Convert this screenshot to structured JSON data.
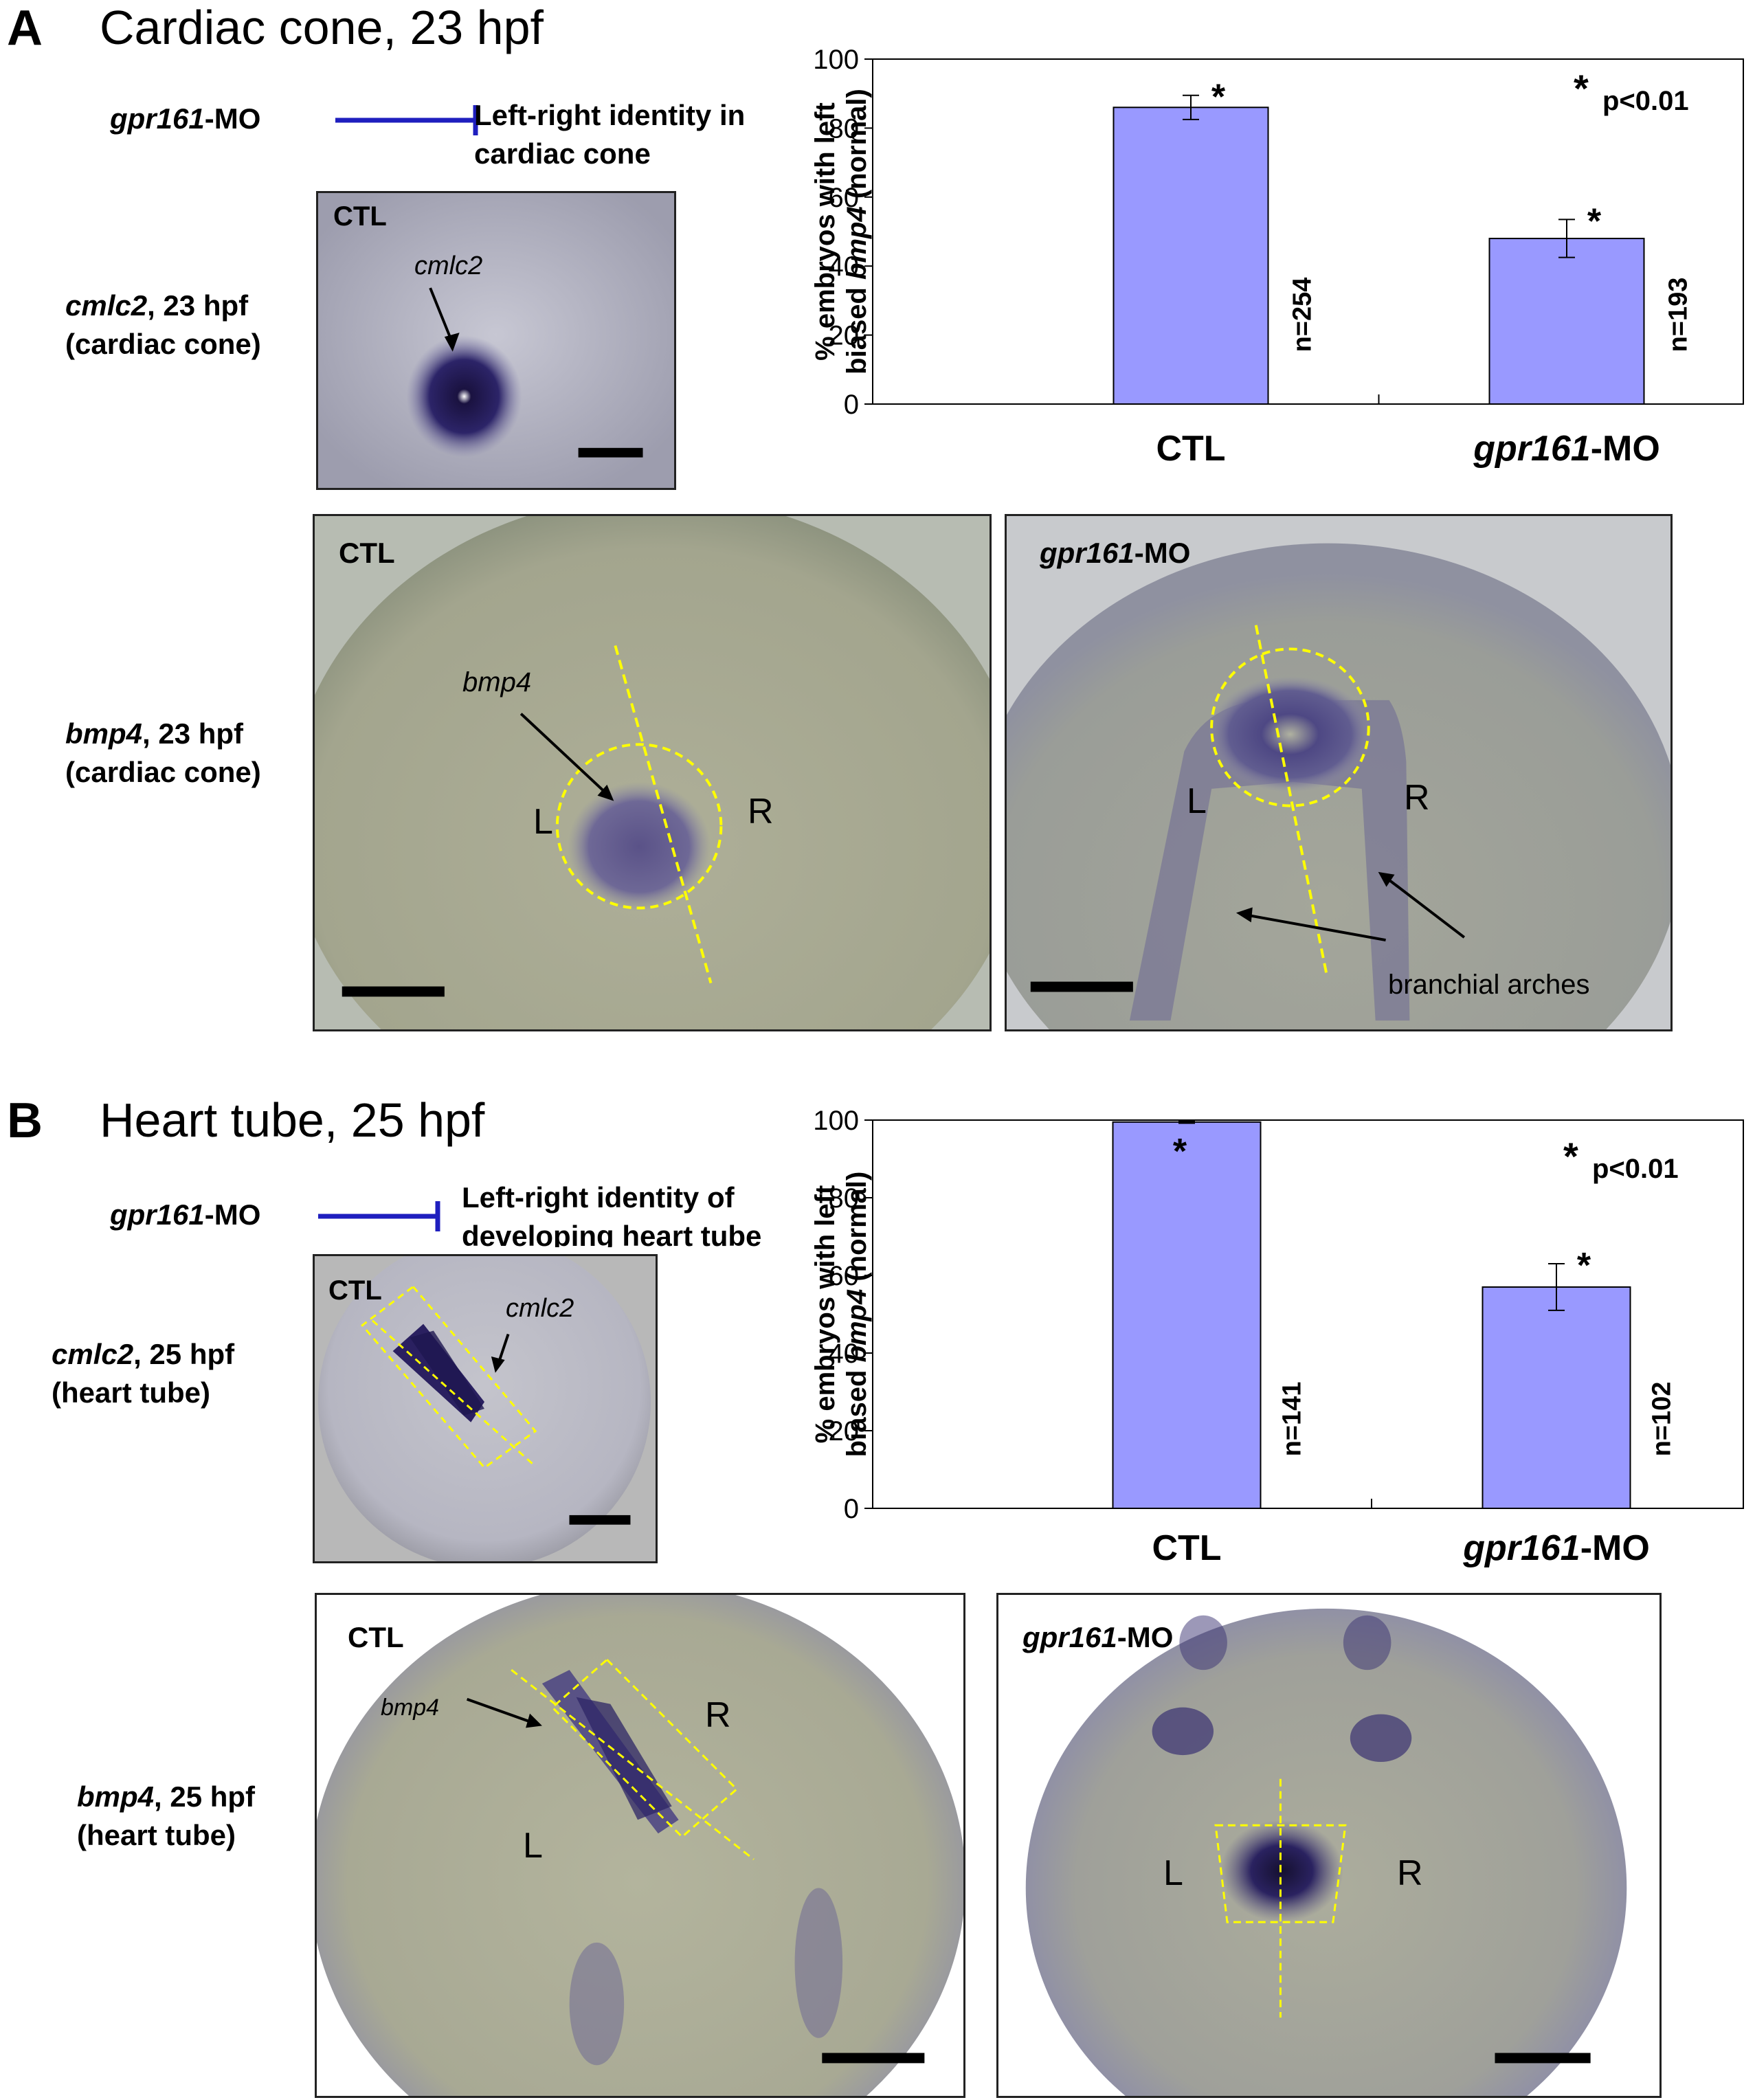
{
  "panel_a": {
    "letter": "A",
    "title": "Cardiac cone, 23 hpf",
    "inhibition": {
      "agent": "gpr161",
      "agent_suffix": "-MO",
      "target_line1": "Left-right identity in",
      "target_line2": "cardiac cone"
    },
    "row1_label": {
      "gene": "cmlc2",
      "rest": ", 23 hpf",
      "line2": "(cardiac cone)"
    },
    "row2_label": {
      "gene": "bmp4",
      "rest": ", 23 hpf",
      "line2": "(cardiac cone)"
    },
    "img_cmlc2": {
      "tag": "CTL",
      "marker": "cmlc2"
    },
    "img_bmp4_ctl": {
      "tag": "CTL",
      "marker": "bmp4",
      "left": "L",
      "right": "R"
    },
    "img_bmp4_mo": {
      "tag_gene": "gpr161",
      "tag_suffix": "-MO",
      "left": "L",
      "right": "R",
      "annotation": "branchial arches"
    }
  },
  "panel_b": {
    "letter": "B",
    "title": "Heart tube, 25 hpf",
    "inhibition": {
      "agent": "gpr161",
      "agent_suffix": "-MO",
      "target_line1": "Left-right identity of",
      "target_line2": "developing heart tube"
    },
    "row1_label": {
      "gene": "cmlc2",
      "rest": ", 25 hpf",
      "line2": "(heart tube)"
    },
    "row2_label": {
      "gene": "bmp4",
      "rest": ", 25 hpf",
      "line2": "(heart tube)"
    },
    "img_cmlc2": {
      "tag": "CTL",
      "marker": "cmlc2"
    },
    "img_bmp4_ctl": {
      "tag": "CTL",
      "marker": "bmp4",
      "left": "L",
      "right": "R"
    },
    "img_bmp4_mo": {
      "tag_gene": "gpr161",
      "tag_suffix": "-MO",
      "left": "L",
      "right": "R"
    }
  },
  "colors": {
    "bar_fill": "#9999ff",
    "bar_stroke": "#000000",
    "guide": "#ffff00",
    "stain": "#2a2060",
    "inhibit_line": "#1f1fbf",
    "embryo": "#a9aa95"
  },
  "chart_data": [
    {
      "type": "bar",
      "categories": [
        "CTL",
        "gpr161-MO"
      ],
      "category_display": [
        {
          "italic": "",
          "rest": "CTL"
        },
        {
          "italic": "gpr161",
          "rest": "-MO"
        }
      ],
      "values": [
        86,
        48
      ],
      "errors": [
        3.5,
        5.5
      ],
      "n_labels": [
        "n=254",
        "n=193"
      ],
      "significance": [
        "*",
        "*"
      ],
      "legend_text": "p<0.01",
      "legend_star": "*",
      "ylabel_line1": "% embryos with left",
      "ylabel_line2_pre": "biased ",
      "ylabel_line2_italic": "bmp4",
      "ylabel_line2_post": " (normal)",
      "ylim": [
        0,
        100
      ],
      "yticks": [
        "0",
        "20",
        "40",
        "60",
        "80",
        "100"
      ]
    },
    {
      "type": "bar",
      "categories": [
        "CTL",
        "gpr161-MO"
      ],
      "category_display": [
        {
          "italic": "",
          "rest": "CTL"
        },
        {
          "italic": "gpr161",
          "rest": "-MO"
        }
      ],
      "values": [
        99.5,
        57
      ],
      "errors": [
        0.3,
        6
      ],
      "n_labels": [
        "n=141",
        "n=102"
      ],
      "significance": [
        "*",
        "*"
      ],
      "legend_text": "p<0.01",
      "legend_star": "*",
      "ylabel_line1": "% embryos with left",
      "ylabel_line2_pre": "biased ",
      "ylabel_line2_italic": "bmp4",
      "ylabel_line2_post": " (normal)",
      "ylim": [
        0,
        100
      ],
      "yticks": [
        "0",
        "20",
        "40",
        "60",
        "80",
        "100"
      ]
    }
  ]
}
